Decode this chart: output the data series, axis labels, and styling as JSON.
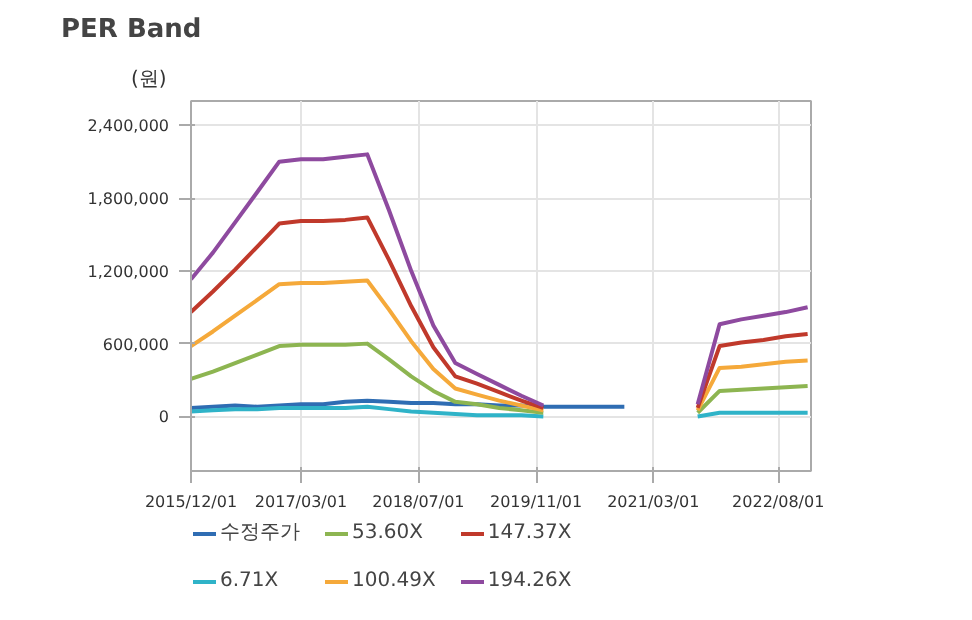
{
  "chart_data": {
    "type": "line",
    "title": "PER Band",
    "ylabel": "(원)",
    "x": [
      "2015-12-01",
      "2016-03-01",
      "2016-06-01",
      "2016-09-01",
      "2016-12-01",
      "2017-03-01",
      "2017-06-01",
      "2017-09-01",
      "2017-12-01",
      "2018-03-01",
      "2018-06-01",
      "2018-09-01",
      "2018-12-01",
      "2019-03-01",
      "2019-06-01",
      "2019-09-01",
      "2019-12-01",
      "2021-06-01",
      "2021-09-01",
      "2021-12-01",
      "2022-03-01",
      "2022-06-01",
      "2022-09-01",
      "2022-12-01"
    ],
    "series": [
      {
        "name": "수정주가",
        "color": "#2f6db3",
        "x": [
          "2015-12-01",
          "2016-03-01",
          "2016-06-01",
          "2016-09-01",
          "2016-12-01",
          "2017-03-01",
          "2017-06-01",
          "2017-09-01",
          "2017-12-01",
          "2018-03-01",
          "2018-06-01",
          "2018-09-01",
          "2018-12-01",
          "2019-03-01",
          "2019-06-01",
          "2019-09-01",
          "2019-12-01",
          "2020-03-01",
          "2020-06-01",
          "2020-09-01",
          "2020-11-01"
        ],
        "values": [
          70000,
          80000,
          90000,
          80000,
          90000,
          100000,
          100000,
          120000,
          130000,
          120000,
          110000,
          110000,
          100000,
          100000,
          90000,
          90000,
          80000,
          80000,
          80000,
          80000,
          80000
        ]
      },
      {
        "name": "6.71X",
        "color": "#2fb3c8",
        "values": [
          40000,
          50000,
          60000,
          60000,
          70000,
          70000,
          70000,
          70000,
          80000,
          60000,
          40000,
          30000,
          20000,
          10000,
          10000,
          10000,
          0,
          null,
          0,
          30000,
          30000,
          30000,
          30000,
          30000
        ]
      },
      {
        "name": "53.60X",
        "color": "#8db551",
        "values": [
          310000,
          370000,
          440000,
          510000,
          580000,
          590000,
          590000,
          590000,
          600000,
          470000,
          330000,
          210000,
          120000,
          100000,
          70000,
          50000,
          30000,
          null,
          30000,
          210000,
          220000,
          230000,
          240000,
          250000
        ]
      },
      {
        "name": "100.49X",
        "color": "#f5a93a",
        "values": [
          580000,
          700000,
          830000,
          960000,
          1090000,
          1100000,
          1100000,
          1110000,
          1120000,
          880000,
          620000,
          390000,
          230000,
          180000,
          130000,
          90000,
          50000,
          null,
          50000,
          400000,
          410000,
          430000,
          450000,
          460000
        ]
      },
      {
        "name": "147.37X",
        "color": "#c0392b",
        "values": [
          860000,
          1030000,
          1210000,
          1400000,
          1590000,
          1610000,
          1610000,
          1620000,
          1640000,
          1290000,
          910000,
          570000,
          330000,
          270000,
          200000,
          130000,
          70000,
          null,
          70000,
          580000,
          610000,
          630000,
          660000,
          680000
        ]
      },
      {
        "name": "194.26X",
        "color": "#8e4a9f",
        "values": [
          1130000,
          1350000,
          1600000,
          1850000,
          2100000,
          2120000,
          2120000,
          2140000,
          2160000,
          1700000,
          1200000,
          750000,
          440000,
          350000,
          260000,
          170000,
          90000,
          null,
          100000,
          760000,
          800000,
          830000,
          860000,
          900000
        ]
      }
    ],
    "xlim": [
      "2015-12-01",
      "2022-12-15"
    ],
    "xticks": [
      {
        "value": "2015-12-01",
        "label": "2015/12/01"
      },
      {
        "value": "2017-03-01",
        "label": "2017/03/01"
      },
      {
        "value": "2018-07-01",
        "label": "2018/07/01"
      },
      {
        "value": "2019-11-01",
        "label": "2019/11/01"
      },
      {
        "value": "2021-03-01",
        "label": "2021/03/01"
      },
      {
        "value": "2022-08-01",
        "label": "2022/08/01"
      }
    ],
    "ylim": [
      -450000,
      2600000
    ],
    "yticks": [
      0,
      {
        "value": 600000,
        "label": "600,000"
      },
      {
        "value": 1200000,
        "label": "1,200,000"
      },
      {
        "value": 1800000,
        "label": "1,800,000"
      },
      {
        "value": 2400000,
        "label": "2,400,000"
      }
    ],
    "grid": true,
    "legend": "bottom",
    "marker": "none",
    "line_style": "solid"
  }
}
